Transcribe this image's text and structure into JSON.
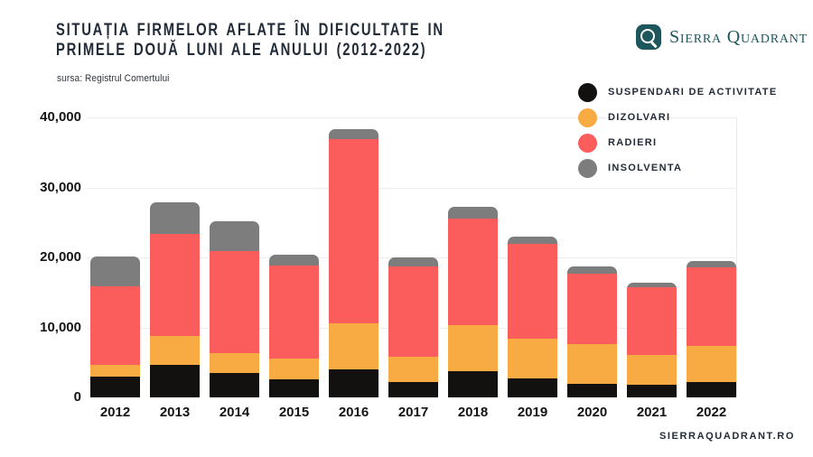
{
  "header": {
    "title_lines": [
      "SITUAȚIA FIRMELOR AFLATE ÎN DIFICULTATE IN",
      "PRIMELE DOUĂ LUNI ALE ANULUI (2012-2022)"
    ],
    "source": "sursa: Registrul Comertului",
    "brand": "Sierra Quadrant"
  },
  "footer": {
    "website": "SIERRAQUADRANT.RO"
  },
  "colors": {
    "title_navy": "#222B38",
    "brand_teal": "#1D565C",
    "gridline": "#EDEDED"
  },
  "chart_data": {
    "type": "bar",
    "stacked": true,
    "title": "SITUAȚIA FIRMELOR AFLATE ÎN DIFICULTATE IN PRIMELE DOUĂ LUNI ALE ANULUI (2012-2022)",
    "source": "sursa: Registrul Comertului",
    "grid": "horizontal",
    "legend_position": "top-right",
    "categories": [
      "2012",
      "2013",
      "2014",
      "2015",
      "2016",
      "2017",
      "2018",
      "2019",
      "2020",
      "2021",
      "2022"
    ],
    "series": [
      {
        "name": "SUSPENDARI DE ACTIVITATE",
        "color": "#121110",
        "values": [
          3000,
          4600,
          3500,
          2600,
          4000,
          2200,
          3700,
          2700,
          1900,
          1800,
          2200
        ]
      },
      {
        "name": "DIZOLVARI",
        "color": "#F8AB43",
        "values": [
          1600,
          4200,
          2800,
          2900,
          6600,
          3600,
          6600,
          5700,
          5700,
          4300,
          5200
        ]
      },
      {
        "name": "RADIERI",
        "color": "#FB5C5C",
        "values": [
          11300,
          14600,
          14600,
          13300,
          26300,
          12900,
          15200,
          13500,
          10100,
          9600,
          11200
        ]
      },
      {
        "name": "INSOLVENTA",
        "color": "#7D7D7D",
        "values": [
          4200,
          4500,
          4300,
          1600,
          1400,
          1300,
          1700,
          1100,
          1000,
          700,
          900
        ]
      }
    ],
    "totals": [
      20100,
      27900,
      25200,
      20400,
      38300,
      20000,
      27200,
      23000,
      18700,
      16400,
      19500
    ],
    "ylim": [
      0,
      40000
    ],
    "yticks": [
      {
        "label": "40,000",
        "value": 40000
      },
      {
        "label": "30,000",
        "value": 30000
      },
      {
        "label": "20,000",
        "value": 20000
      },
      {
        "label": "10,000",
        "value": 10000
      },
      {
        "label": "0",
        "value": 0
      }
    ]
  }
}
